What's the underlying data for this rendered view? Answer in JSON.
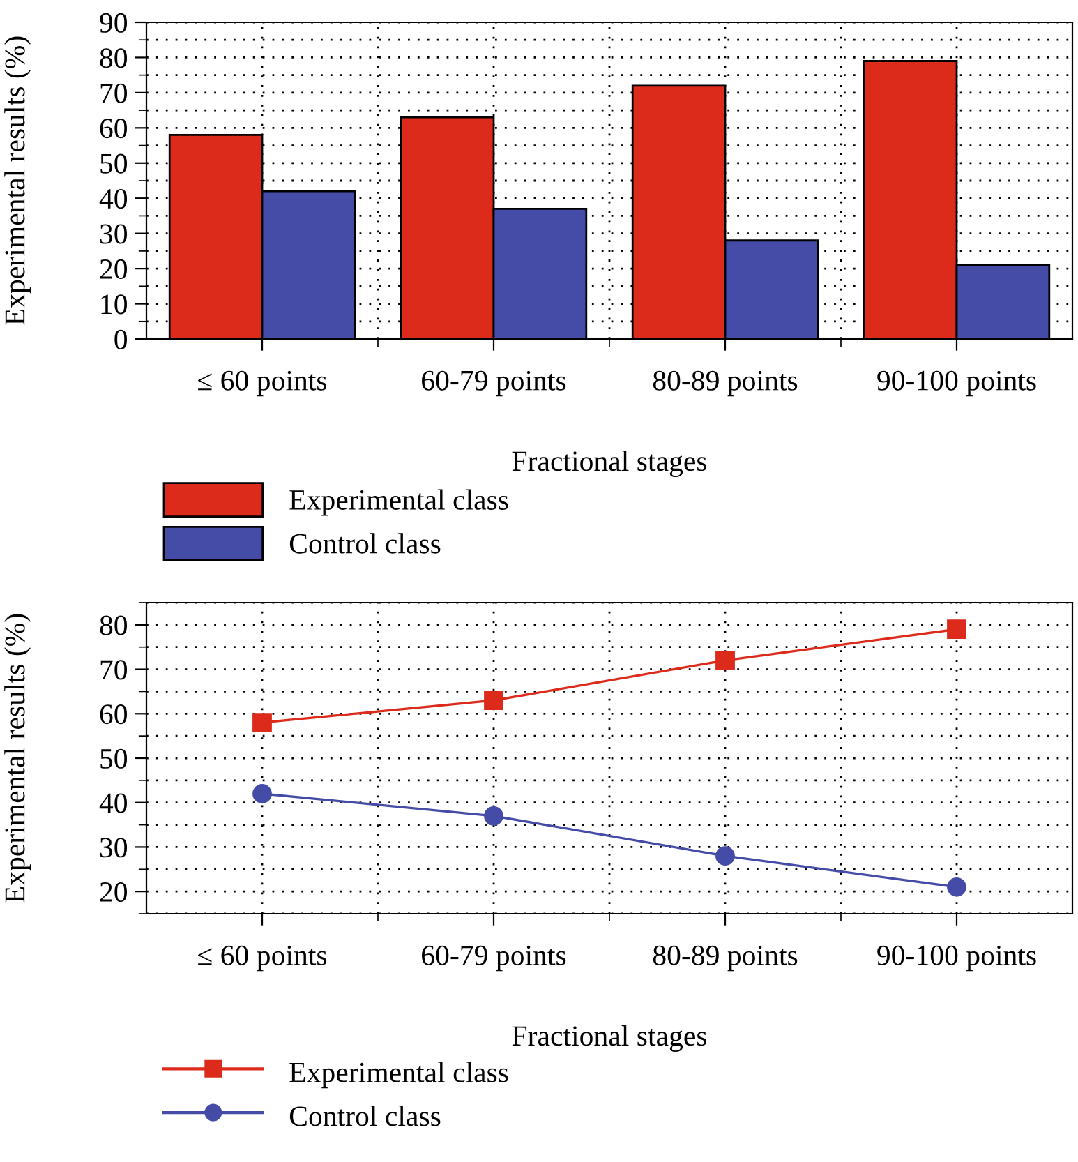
{
  "chart_data": [
    {
      "type": "bar",
      "xlabel": "Fractional stages",
      "ylabel": "Experimental results (%)",
      "categories": [
        "≤ 60 points",
        "60-79 points",
        "80-89 points",
        "90-100 points"
      ],
      "series": [
        {
          "name": "Experimental class",
          "color": "#dc2a1b",
          "values": [
            58,
            63,
            72,
            79
          ]
        },
        {
          "name": "Control class",
          "color": "#444ca8",
          "values": [
            42,
            37,
            28,
            21
          ]
        }
      ],
      "ylim": [
        0,
        90
      ],
      "yticks": [
        0,
        10,
        20,
        30,
        40,
        50,
        60,
        70,
        80,
        90
      ],
      "grid": true,
      "legend": "bottom left"
    },
    {
      "type": "line",
      "xlabel": "Fractional stages",
      "ylabel": "Experimental results (%)",
      "categories": [
        "≤ 60 points",
        "60-79 points",
        "80-89 points",
        "90-100 points"
      ],
      "series": [
        {
          "name": "Experimental class",
          "color": "#dc2a1b",
          "values": [
            58,
            63,
            72,
            79
          ],
          "marker": "square"
        },
        {
          "name": "Control class",
          "color": "#444ca8",
          "values": [
            42,
            37,
            28,
            21
          ],
          "marker": "circle"
        }
      ],
      "ylim": [
        15,
        85
      ],
      "yticks": [
        20,
        30,
        40,
        50,
        60,
        70,
        80
      ],
      "grid": true,
      "legend": "bottom left",
      "line_style": "solid"
    }
  ]
}
